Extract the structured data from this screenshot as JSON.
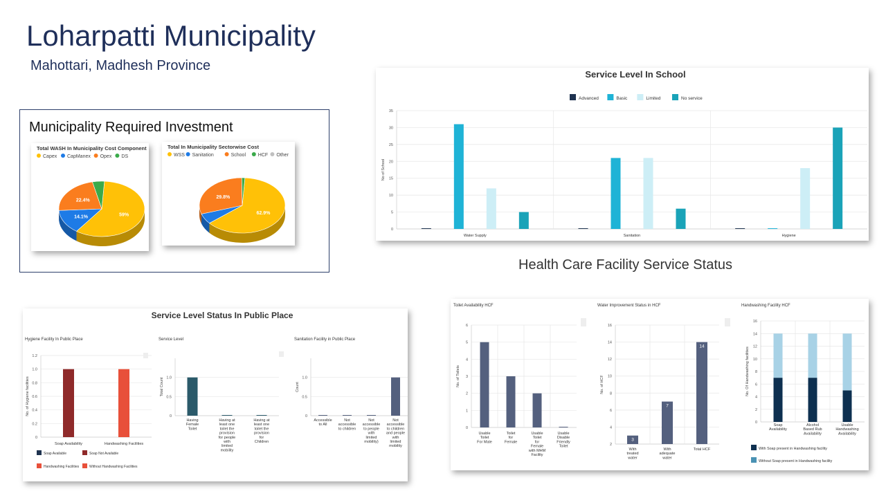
{
  "page": {
    "title": "Loharpatti Municipality",
    "subtitle": "Mahottari, Madhesh Province",
    "investment_heading": "Municipality Required Investment",
    "hcf_heading": "Health Care Facility Service Status"
  },
  "colors": {
    "advanced": "#1f3350",
    "basic": "#1fb3d6",
    "limited": "#cdeef6",
    "no_service": "#1aa3b8",
    "soap_available": "#1f3350",
    "soap_not_available": "#8f2a2a",
    "handwashing": "#e8503a",
    "slate": "#54607e",
    "teal_dark": "#2b5a6a",
    "pie_yellow": "#ffc107",
    "pie_blue": "#1e7be6",
    "pie_orange": "#fa7d1e",
    "pie_green": "#3aaa4a",
    "pie_gray": "#c0c0c0",
    "hw_light": "#a8d2e6",
    "hw_mid": "#4a92b4",
    "hw_dark": "#0e3050"
  },
  "chart_data": [
    {
      "type": "pie",
      "title": "Total WASH In Municipality Cost Component",
      "legend": [
        "Capex",
        "CapManex",
        "Opex",
        "DS"
      ],
      "values": [
        59,
        14.1,
        22.4,
        4.5
      ],
      "labels": [
        "59%",
        "14.1%",
        "22.4%",
        ""
      ]
    },
    {
      "type": "pie",
      "title": "Total In Municipality Sectorwise Cost",
      "legend": [
        "WSS",
        "Sanitation",
        "School",
        "HCF",
        "Other"
      ],
      "values": [
        62.9,
        6.1,
        29.8,
        1.2,
        0
      ],
      "labels": [
        "62.9%",
        "",
        "29.8%",
        "",
        ""
      ]
    },
    {
      "type": "bar",
      "title": "Service Level In School",
      "categories": [
        "Water Supply",
        "Sanitation",
        "Hygiene"
      ],
      "series": [
        {
          "name": "Advanced",
          "values": [
            0,
            0,
            0
          ]
        },
        {
          "name": "Basic",
          "values": [
            31,
            21,
            0
          ]
        },
        {
          "name": "Limited",
          "values": [
            12,
            21,
            18
          ]
        },
        {
          "name": "No service",
          "values": [
            5,
            6,
            30
          ]
        }
      ],
      "ylabel": "No of School",
      "yticks": [
        0,
        5,
        10,
        15,
        20,
        25,
        30,
        35
      ],
      "ylim": [
        0,
        35
      ],
      "legend_position": "top"
    },
    {
      "type": "bar",
      "title": "Hygiene Facility In Public Place",
      "categories": [
        "Soap Availability",
        "Handwashing Facilities"
      ],
      "values": [
        1,
        1
      ],
      "ylabel": "No. of Hygiene facilities",
      "yticks": [
        "0",
        "0.2",
        "0.4",
        "0.6",
        "0.8",
        "1.0",
        "1.2"
      ],
      "ylim": [
        0,
        1.2
      ],
      "legend": [
        "Soap Available",
        "Soap Not Available",
        "Handwashing Facilities",
        "Without Handwashing Facilities"
      ]
    },
    {
      "type": "bar",
      "title": "Service Level",
      "categories": [
        "Having Female Toilet",
        "Having at least one toilet the provision for people with limited mobility",
        "Having at least one toilet the provision for Children"
      ],
      "values": [
        1,
        0,
        0
      ],
      "ylabel": "Total Count",
      "yticks": [
        "0",
        "0.5",
        "1.0"
      ],
      "ylim": [
        0,
        1.5
      ]
    },
    {
      "type": "bar",
      "title": "Sanitation Facility in Public Place",
      "categories": [
        "Accessible to All",
        "Not accessible to children",
        "Not accessible to people with limited mobility)",
        "Not accessible to children and people with limited mobility"
      ],
      "values": [
        0,
        0,
        0,
        1
      ],
      "ylabel": "Count",
      "yticks": [
        "0",
        "0.5",
        "1.0"
      ],
      "ylim": [
        0,
        1.5
      ]
    },
    {
      "type": "bar",
      "title": "Toilet Availability HCF",
      "categories": [
        "Usable Toilet For Male",
        "Toilet for Female",
        "Usable Toilet for Female with MHM Facility",
        "Usable Disable Friendly Toilet"
      ],
      "values": [
        5,
        3,
        2,
        0
      ],
      "ylabel": "No. of Toilets",
      "yticks": [
        0,
        1,
        2,
        3,
        4,
        5,
        6
      ],
      "ylim": [
        0,
        6
      ]
    },
    {
      "type": "bar",
      "title": "Water Improvement Status in HCF",
      "categories": [
        "With treated water",
        "With adequate water",
        "Total HCF"
      ],
      "values": [
        3,
        7,
        14
      ],
      "data_labels": [
        "3",
        "7",
        "14"
      ],
      "ylabel": "No. of HCF",
      "yticks": [
        2,
        4,
        6,
        8,
        10,
        12,
        14,
        16
      ],
      "ylim": [
        2,
        16
      ]
    },
    {
      "type": "bar",
      "title": "Handwashing Facility HCF",
      "categories": [
        "Soap Availability",
        "Alcohol Based Rub Availability",
        "Usable Handwashing Availability"
      ],
      "series": [
        {
          "name": "With Soap present in Handwashing facility",
          "values": [
            7,
            7,
            5
          ]
        },
        {
          "name": "Without Soap present in Handwashing facility",
          "values": [
            7,
            7,
            9
          ]
        }
      ],
      "stacked": true,
      "ylabel": "No. Of Handwashing facilities",
      "yticks": [
        0,
        2,
        4,
        6,
        8,
        10,
        12,
        14,
        16
      ],
      "ylim": [
        0,
        16
      ]
    }
  ]
}
